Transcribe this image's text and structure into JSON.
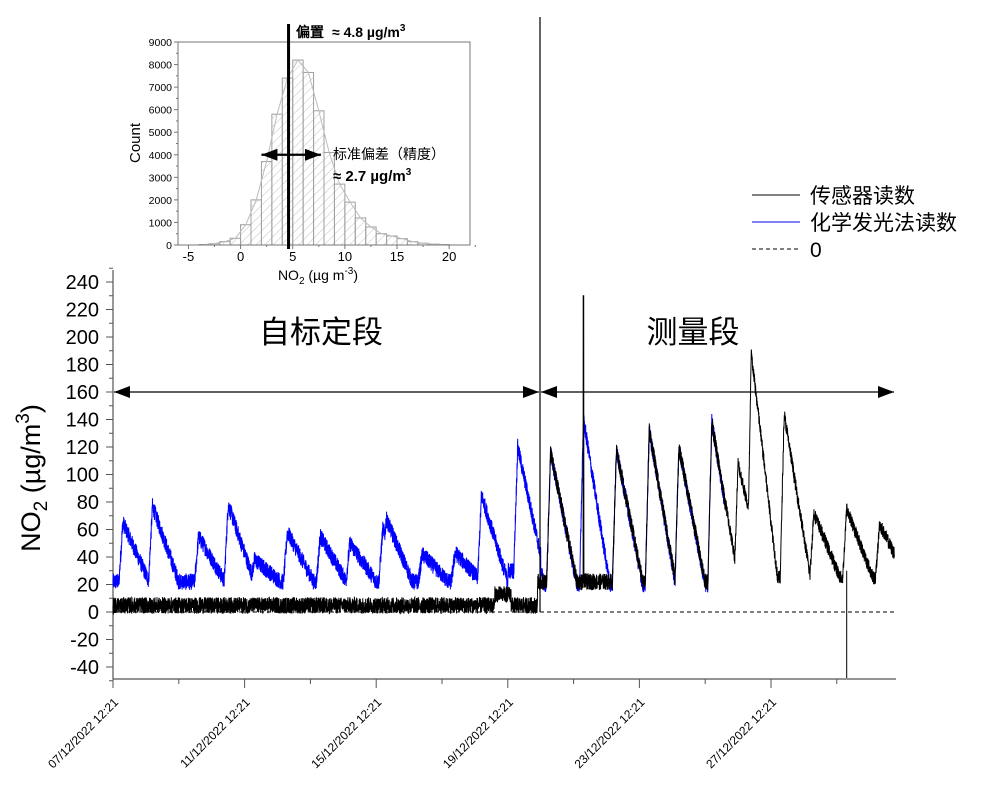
{
  "chart_data": [
    {
      "id": "main",
      "type": "line",
      "title": "",
      "xlabel": "",
      "ylabel": "NO2 (µg/m3)",
      "ylabel_parts": {
        "base": "NO",
        "sub": "2",
        "mid": " (µg/m",
        "sup": "3",
        "end": ")"
      },
      "ylim": [
        -48,
        245
      ],
      "yticks": [
        -40,
        -20,
        0,
        20,
        40,
        60,
        80,
        100,
        120,
        140,
        160,
        180,
        200,
        220,
        240
      ],
      "xlim_days": [
        0,
        23.75
      ],
      "xtick_labels": [
        "07/12/2022 12:21",
        "11/12/2022 12:21",
        "15/12/2022 12:21",
        "19/12/2022 12:21",
        "23/12/2022 12:21",
        "27/12/2022 12:21"
      ],
      "xtick_days": [
        0,
        4,
        8,
        12,
        16,
        20
      ],
      "xminor_days": [
        2,
        6,
        10,
        14,
        18,
        22
      ],
      "grid": false,
      "legend_position": "upper right, outside plot",
      "legend": [
        {
          "label": "传感器读数",
          "color": "#000000",
          "style": "solid"
        },
        {
          "label": "化学发光法读数",
          "color": "#0000ff",
          "style": "solid"
        },
        {
          "label": "0",
          "color": "#000000",
          "style": "dashed"
        }
      ],
      "annotations": {
        "calibration_label": "自标定段",
        "measurement_label": "测量段",
        "arrow_y_value": 160,
        "divider_day": 12.9
      },
      "series": [
        {
          "name": "化学发光法读数",
          "color": "#0000ff",
          "day_range": [
            0,
            18.6
          ],
          "baseline": 25,
          "peaks": [
            {
              "day": 0.3,
              "value": 65
            },
            {
              "day": 1.2,
              "value": 77
            },
            {
              "day": 2.6,
              "value": 55
            },
            {
              "day": 3.5,
              "value": 78
            },
            {
              "day": 4.3,
              "value": 38
            },
            {
              "day": 5.3,
              "value": 58
            },
            {
              "day": 6.3,
              "value": 55
            },
            {
              "day": 7.2,
              "value": 50
            },
            {
              "day": 8.2,
              "value": 60
            },
            {
              "day": 8.3,
              "value": 68
            },
            {
              "day": 9.4,
              "value": 42
            },
            {
              "day": 10.4,
              "value": 43
            },
            {
              "day": 11.2,
              "value": 85
            },
            {
              "day": 12.3,
              "value": 120
            },
            {
              "day": 13.3,
              "value": 116
            },
            {
              "day": 14.3,
              "value": 140
            },
            {
              "day": 15.3,
              "value": 118
            },
            {
              "day": 16.3,
              "value": 132
            },
            {
              "day": 17.2,
              "value": 120
            },
            {
              "day": 18.2,
              "value": 138
            }
          ]
        },
        {
          "name": "传感器读数",
          "color": "#000000",
          "day_range": [
            0,
            23.75
          ],
          "calibration_offset": 4.8,
          "peaks_after_divider": [
            {
              "day": 13.3,
              "value": 116
            },
            {
              "day": 14.3,
              "value": 230
            },
            {
              "day": 15.3,
              "value": 118
            },
            {
              "day": 16.3,
              "value": 132
            },
            {
              "day": 17.2,
              "value": 120
            },
            {
              "day": 18.2,
              "value": 138
            },
            {
              "day": 19.0,
              "value": 108
            },
            {
              "day": 19.4,
              "value": 188
            },
            {
              "day": 20.4,
              "value": 144
            },
            {
              "day": 21.3,
              "value": 72
            },
            {
              "day": 22.3,
              "value": 75
            },
            {
              "day": 23.3,
              "value": 64
            }
          ],
          "negative_spike": {
            "day": 22.3,
            "value": -48
          }
        },
        {
          "name": "0",
          "color": "#000000",
          "style": "dashed",
          "value": 0,
          "day_range": [
            0,
            23.75
          ]
        }
      ]
    },
    {
      "id": "inset",
      "type": "bar",
      "title": "",
      "xlabel": "NO2 (µg m-3)",
      "xlabel_parts": {
        "base": "NO",
        "sub": "2",
        "mid": " (µg m",
        "sup": "-3",
        "end": ")"
      },
      "ylabel": "Count",
      "xlim": [
        -6,
        22
      ],
      "ylim": [
        0,
        9000
      ],
      "xticks": [
        -5,
        0,
        5,
        10,
        15,
        20
      ],
      "yticks": [
        0,
        1000,
        2000,
        3000,
        4000,
        5000,
        6000,
        7000,
        8000,
        9000
      ],
      "bin_width": 1,
      "categories": [
        -4,
        -3,
        -2,
        -1,
        0,
        1,
        2,
        3,
        4,
        5,
        6,
        7,
        8,
        9,
        10,
        11,
        12,
        13,
        14,
        15,
        16,
        17,
        18,
        19
      ],
      "values": [
        20,
        60,
        150,
        300,
        900,
        2000,
        3700,
        5800,
        7400,
        8200,
        7650,
        5950,
        4100,
        2700,
        1900,
        1200,
        800,
        500,
        400,
        280,
        150,
        80,
        40,
        20
      ],
      "annotations": {
        "bias_label": "偏置",
        "bias_value": "≈ 4.8 µg/m",
        "bias_sup": "3",
        "bias_x": 4.6,
        "std_label": "标准偏差（精度）",
        "std_value": "≈ 2.7 µg/m",
        "std_sup": "3",
        "std_arrow_x_range": [
          2.0,
          7.7
        ],
        "std_arrow_y": 4000
      }
    }
  ]
}
